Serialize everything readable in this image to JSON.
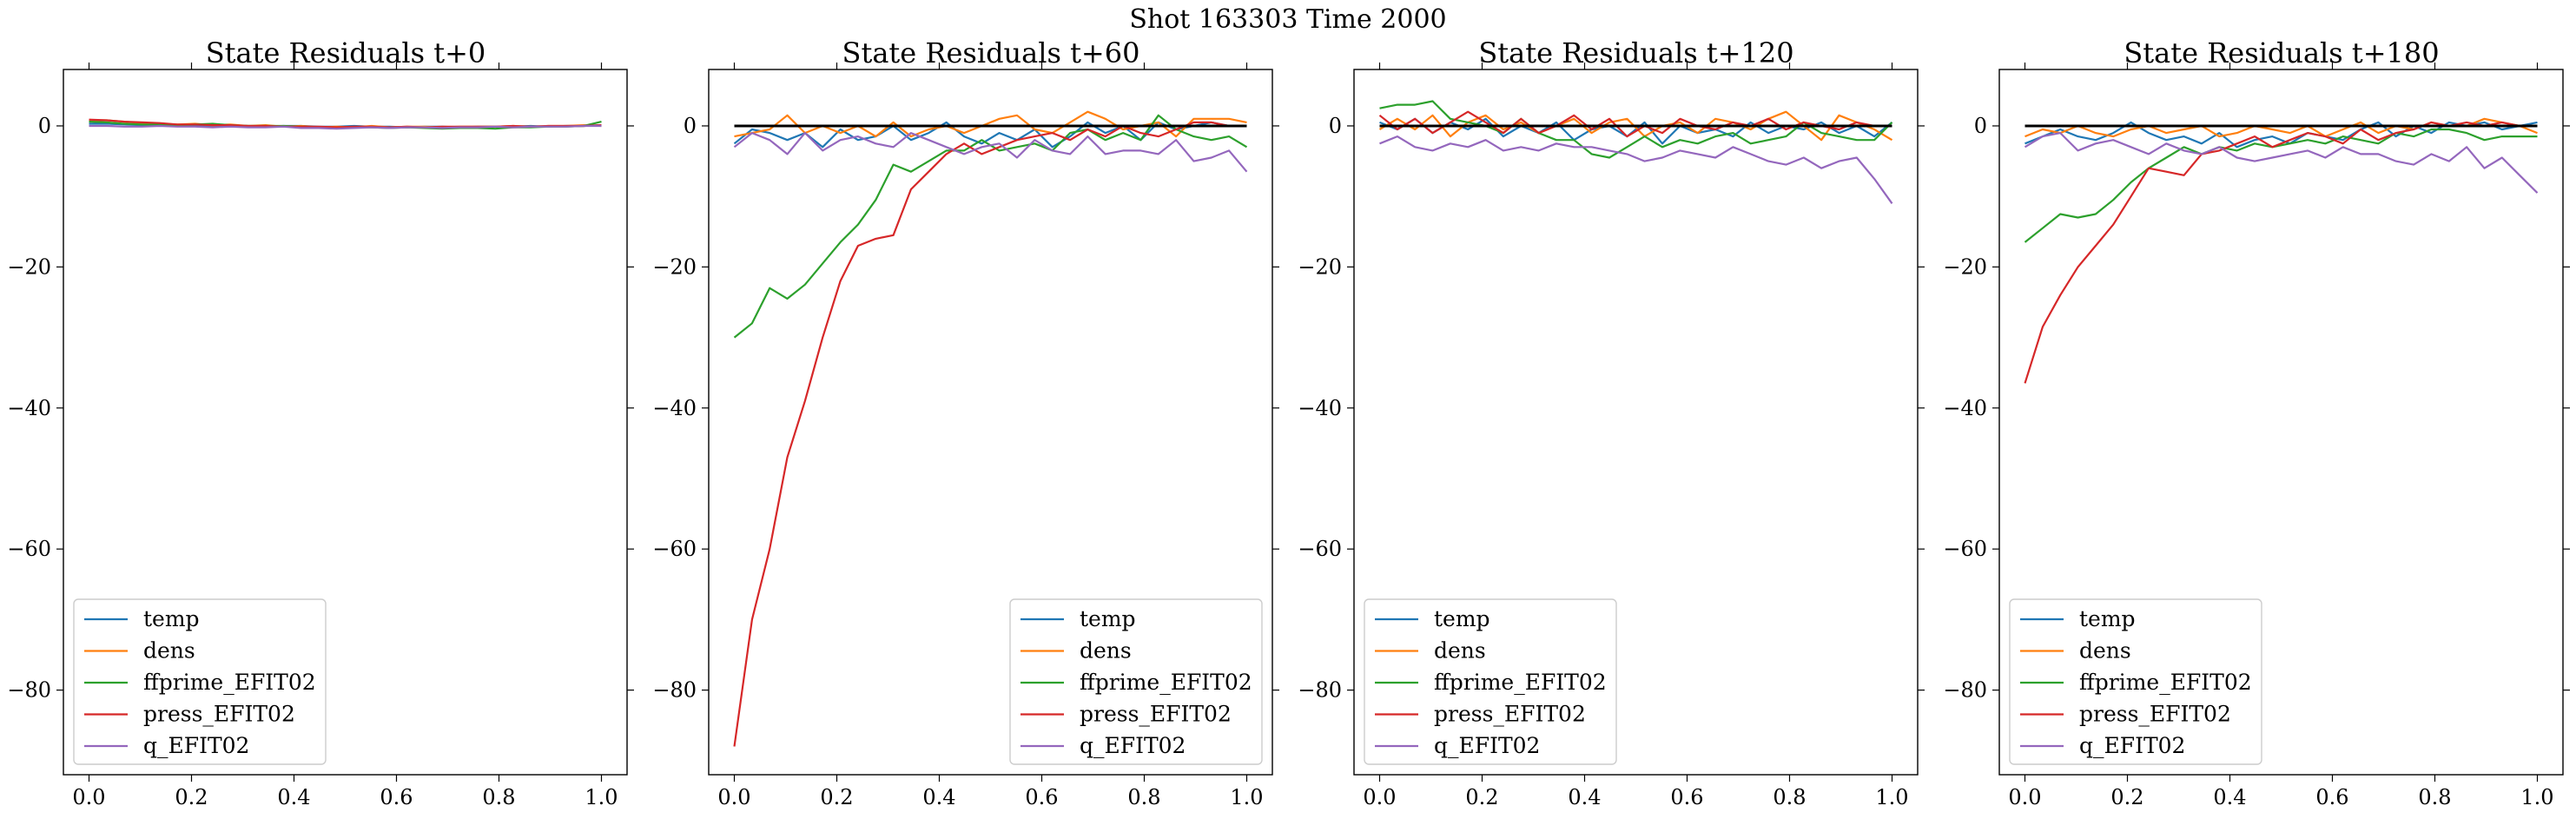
{
  "figure_title": "Shot 163303   Time 2000",
  "series_colors": {
    "temp": "#1f77b4",
    "dens": "#ff7f0e",
    "ffprime_EFIT02": "#2ca02c",
    "press_EFIT02": "#d62728",
    "q_EFIT02": "#9467bd"
  },
  "chart_data": [
    {
      "type": "line",
      "title": "State Residuals t+0",
      "xlim": [
        -0.05,
        1.05
      ],
      "ylim": [
        -92,
        8
      ],
      "xticks": [
        "0.0",
        "0.2",
        "0.4",
        "0.6",
        "0.8",
        "1.0"
      ],
      "yticks": [
        "0",
        "−20",
        "−40",
        "−60",
        "−80"
      ],
      "legend": "lower-left",
      "x": [
        0.0,
        0.0345,
        0.069,
        0.1034,
        0.1379,
        0.1724,
        0.2069,
        0.2414,
        0.2759,
        0.3103,
        0.3448,
        0.3793,
        0.4138,
        0.4483,
        0.4828,
        0.5172,
        0.5517,
        0.5862,
        0.6207,
        0.6552,
        0.6897,
        0.7241,
        0.7586,
        0.7931,
        0.8276,
        0.8621,
        0.8966,
        0.931,
        0.9655,
        1.0
      ],
      "series": [
        {
          "name": "temp",
          "values": [
            0.3,
            0.3,
            0.2,
            0.1,
            0.2,
            0.1,
            0.1,
            0.0,
            0.1,
            0.0,
            -0.1,
            0.0,
            0.0,
            -0.1,
            -0.1,
            0.0,
            -0.1,
            -0.1,
            -0.2,
            -0.1,
            -0.1,
            -0.2,
            -0.1,
            -0.1,
            -0.1,
            0.0,
            -0.1,
            0.0,
            0.0,
            0.1
          ]
        },
        {
          "name": "dens",
          "values": [
            0.8,
            0.8,
            0.6,
            0.4,
            0.3,
            0.2,
            0.3,
            0.1,
            0.2,
            0.0,
            0.1,
            -0.1,
            0.0,
            -0.2,
            -0.1,
            -0.2,
            0.0,
            -0.2,
            -0.1,
            -0.1,
            -0.2,
            -0.1,
            -0.1,
            -0.1,
            0.0,
            -0.1,
            0.0,
            0.0,
            0.1,
            0.0
          ]
        },
        {
          "name": "ffprime_EFIT02",
          "values": [
            0.6,
            0.5,
            0.3,
            0.2,
            0.2,
            0.1,
            0.2,
            0.3,
            0.1,
            0.0,
            0.0,
            0.0,
            -0.1,
            -0.2,
            -0.3,
            -0.2,
            -0.2,
            -0.3,
            -0.2,
            -0.3,
            -0.4,
            -0.3,
            -0.3,
            -0.4,
            -0.2,
            -0.2,
            -0.1,
            -0.1,
            0.0,
            0.6
          ]
        },
        {
          "name": "press_EFIT02",
          "values": [
            0.9,
            0.8,
            0.6,
            0.5,
            0.4,
            0.2,
            0.2,
            0.1,
            0.1,
            0.0,
            0.0,
            -0.1,
            -0.1,
            -0.1,
            -0.2,
            -0.1,
            -0.1,
            -0.2,
            -0.1,
            -0.2,
            -0.1,
            -0.1,
            -0.1,
            -0.1,
            0.0,
            -0.1,
            0.0,
            0.0,
            0.0,
            0.1
          ]
        },
        {
          "name": "q_EFIT02",
          "values": [
            0.0,
            0.0,
            -0.1,
            -0.1,
            0.0,
            -0.1,
            -0.1,
            -0.2,
            -0.1,
            -0.2,
            -0.2,
            -0.1,
            -0.3,
            -0.3,
            -0.4,
            -0.3,
            -0.2,
            -0.3,
            -0.2,
            -0.2,
            -0.3,
            -0.2,
            -0.2,
            -0.1,
            -0.2,
            -0.1,
            -0.1,
            -0.1,
            0.0,
            0.0
          ]
        }
      ]
    },
    {
      "type": "line",
      "title": "State Residuals t+60",
      "xlim": [
        -0.05,
        1.05
      ],
      "ylim": [
        -92,
        8
      ],
      "xticks": [
        "0.0",
        "0.2",
        "0.4",
        "0.6",
        "0.8",
        "1.0"
      ],
      "yticks": [
        "0",
        "−20",
        "−40",
        "−60",
        "−80"
      ],
      "legend": "lower-right",
      "x": [
        0.0,
        0.0345,
        0.069,
        0.1034,
        0.1379,
        0.1724,
        0.2069,
        0.2414,
        0.2759,
        0.3103,
        0.3448,
        0.3793,
        0.4138,
        0.4483,
        0.4828,
        0.5172,
        0.5517,
        0.5862,
        0.6207,
        0.6552,
        0.6897,
        0.7241,
        0.7586,
        0.7931,
        0.8276,
        0.8621,
        0.8966,
        0.931,
        0.9655,
        1.0
      ],
      "series": [
        {
          "name": "temp",
          "values": [
            -2.5,
            -0.5,
            -1.0,
            -2.0,
            -1.0,
            -3.0,
            -0.5,
            -2.0,
            -1.5,
            0.0,
            -2.0,
            -1.0,
            0.5,
            -1.5,
            -2.5,
            -1.0,
            -2.0,
            -0.5,
            -3.0,
            -1.5,
            0.5,
            -1.0,
            0.0,
            -2.0,
            0.5,
            -0.5,
            0.0,
            0.5,
            0.0,
            0.0
          ]
        },
        {
          "name": "dens",
          "values": [
            -1.5,
            -1.0,
            -0.5,
            1.5,
            -1.0,
            0.0,
            -1.0,
            0.0,
            -1.5,
            0.5,
            -1.5,
            -0.5,
            0.0,
            -1.0,
            0.0,
            1.0,
            1.5,
            -0.5,
            -1.0,
            0.5,
            2.0,
            1.0,
            -0.5,
            0.0,
            0.5,
            -1.5,
            1.0,
            1.0,
            1.0,
            0.5
          ]
        },
        {
          "name": "ffprime_EFIT02",
          "values": [
            -30.0,
            -28.0,
            -23.0,
            -24.5,
            -22.5,
            -19.5,
            -16.5,
            -14.0,
            -10.5,
            -5.5,
            -6.5,
            -5.0,
            -3.5,
            -3.5,
            -2.0,
            -3.5,
            -3.0,
            -2.5,
            -3.5,
            -1.0,
            -0.5,
            -2.0,
            -1.0,
            -2.0,
            1.5,
            -0.5,
            -1.5,
            -2.0,
            -1.5,
            -3.0
          ]
        },
        {
          "name": "press_EFIT02",
          "values": [
            -88.0,
            -70.0,
            -60.0,
            -47.0,
            -39.0,
            -30.0,
            -22.0,
            -17.0,
            -16.0,
            -15.5,
            -9.0,
            -6.5,
            -4.0,
            -2.5,
            -4.0,
            -3.0,
            -2.0,
            -1.5,
            -1.0,
            -2.0,
            -0.5,
            -1.5,
            0.0,
            -1.0,
            -1.5,
            -0.5,
            0.5,
            0.5,
            0.0,
            0.0
          ]
        },
        {
          "name": "q_EFIT02",
          "values": [
            -3.0,
            -1.0,
            -2.0,
            -4.0,
            -1.0,
            -3.5,
            -2.0,
            -1.5,
            -2.5,
            -3.0,
            -1.0,
            -2.0,
            -3.0,
            -4.0,
            -3.0,
            -2.5,
            -4.5,
            -2.0,
            -3.5,
            -4.0,
            -1.5,
            -4.0,
            -3.5,
            -3.5,
            -4.0,
            -2.0,
            -5.0,
            -4.5,
            -3.5,
            -6.5
          ]
        }
      ]
    },
    {
      "type": "line",
      "title": "State Residuals t+120",
      "xlim": [
        -0.05,
        1.05
      ],
      "ylim": [
        -92,
        8
      ],
      "xticks": [
        "0.0",
        "0.2",
        "0.4",
        "0.6",
        "0.8",
        "1.0"
      ],
      "yticks": [
        "0",
        "−20",
        "−40",
        "−60",
        "−80"
      ],
      "legend": "lower-left",
      "x": [
        0.0,
        0.0345,
        0.069,
        0.1034,
        0.1379,
        0.1724,
        0.2069,
        0.2414,
        0.2759,
        0.3103,
        0.3448,
        0.3793,
        0.4138,
        0.4483,
        0.4828,
        0.5172,
        0.5517,
        0.5862,
        0.6207,
        0.6552,
        0.6897,
        0.7241,
        0.7586,
        0.7931,
        0.8276,
        0.8621,
        0.8966,
        0.931,
        0.9655,
        1.0
      ],
      "series": [
        {
          "name": "temp",
          "values": [
            0.5,
            -0.5,
            1.0,
            -1.0,
            0.5,
            -0.5,
            1.0,
            -1.5,
            0.0,
            -1.0,
            0.5,
            -2.0,
            -0.5,
            0.0,
            -1.5,
            0.5,
            -2.5,
            0.0,
            -1.0,
            -0.5,
            -1.5,
            0.5,
            -1.0,
            0.0,
            -0.5,
            0.5,
            -1.0,
            0.0,
            -1.5,
            0.5
          ]
        },
        {
          "name": "dens",
          "values": [
            -0.5,
            1.0,
            -0.5,
            1.5,
            -1.5,
            0.5,
            1.5,
            -0.5,
            0.5,
            -1.0,
            0.0,
            1.0,
            -1.0,
            0.5,
            1.0,
            -1.5,
            0.0,
            0.5,
            -1.0,
            1.0,
            0.5,
            -0.5,
            1.0,
            2.0,
            0.0,
            -2.0,
            1.5,
            0.5,
            -0.5,
            -2.0
          ]
        },
        {
          "name": "ffprime_EFIT02",
          "values": [
            2.5,
            3.0,
            3.0,
            3.5,
            1.0,
            0.5,
            0.0,
            -1.0,
            1.0,
            -1.0,
            -2.0,
            -2.0,
            -4.0,
            -4.5,
            -3.0,
            -1.5,
            -3.0,
            -2.0,
            -2.5,
            -1.5,
            -1.0,
            -2.5,
            -2.0,
            -1.5,
            0.5,
            -1.0,
            -1.5,
            -2.0,
            -2.0,
            0.5
          ]
        },
        {
          "name": "press_EFIT02",
          "values": [
            1.5,
            -0.5,
            1.0,
            -1.0,
            0.5,
            2.0,
            0.5,
            -1.0,
            1.0,
            -1.0,
            0.0,
            1.5,
            -0.5,
            1.0,
            -1.5,
            0.0,
            -1.0,
            1.0,
            0.0,
            -0.5,
            0.5,
            0.0,
            1.0,
            -0.5,
            0.5,
            0.0,
            -0.5,
            0.5,
            0.0,
            0.0
          ]
        },
        {
          "name": "q_EFIT02",
          "values": [
            -2.5,
            -1.5,
            -3.0,
            -3.5,
            -2.5,
            -3.0,
            -2.0,
            -3.5,
            -3.0,
            -3.5,
            -2.5,
            -3.0,
            -3.0,
            -3.5,
            -4.0,
            -5.0,
            -4.5,
            -3.5,
            -4.0,
            -4.5,
            -3.0,
            -4.0,
            -5.0,
            -5.5,
            -4.5,
            -6.0,
            -5.0,
            -4.5,
            -7.5,
            -11.0
          ]
        }
      ]
    },
    {
      "type": "line",
      "title": "State Residuals t+180",
      "xlim": [
        -0.05,
        1.05
      ],
      "ylim": [
        -92,
        8
      ],
      "xticks": [
        "0.0",
        "0.2",
        "0.4",
        "0.6",
        "0.8",
        "1.0"
      ],
      "yticks": [
        "0",
        "−20",
        "−40",
        "−60",
        "−80"
      ],
      "legend": "lower-left",
      "x": [
        0.0,
        0.0345,
        0.069,
        0.1034,
        0.1379,
        0.1724,
        0.2069,
        0.2414,
        0.2759,
        0.3103,
        0.3448,
        0.3793,
        0.4138,
        0.4483,
        0.4828,
        0.5172,
        0.5517,
        0.5862,
        0.6207,
        0.6552,
        0.6897,
        0.7241,
        0.7586,
        0.7931,
        0.8276,
        0.8621,
        0.8966,
        0.931,
        0.9655,
        1.0
      ],
      "series": [
        {
          "name": "temp",
          "values": [
            -2.5,
            -1.5,
            -0.5,
            -1.5,
            -2.0,
            -1.0,
            0.5,
            -1.0,
            -2.0,
            -1.5,
            -2.5,
            -1.0,
            -3.0,
            -2.0,
            -1.5,
            -2.5,
            -1.0,
            -1.5,
            -2.0,
            -0.5,
            0.5,
            -1.5,
            0.0,
            -1.0,
            0.5,
            0.0,
            0.5,
            -0.5,
            0.0,
            0.5
          ]
        },
        {
          "name": "dens",
          "values": [
            -1.5,
            -0.5,
            -1.0,
            0.0,
            -1.0,
            -1.5,
            -0.5,
            0.0,
            -1.0,
            -0.5,
            0.0,
            -1.5,
            -1.0,
            0.0,
            -0.5,
            -1.0,
            0.0,
            -1.5,
            -0.5,
            0.5,
            -1.0,
            0.0,
            -0.5,
            0.5,
            0.0,
            0.0,
            1.0,
            0.5,
            0.0,
            -1.0
          ]
        },
        {
          "name": "ffprime_EFIT02",
          "values": [
            -16.5,
            -14.5,
            -12.5,
            -13.0,
            -12.5,
            -10.5,
            -8.0,
            -6.0,
            -4.5,
            -3.0,
            -4.0,
            -3.0,
            -3.5,
            -2.5,
            -3.0,
            -2.5,
            -2.0,
            -2.5,
            -1.5,
            -2.0,
            -2.5,
            -1.0,
            -1.5,
            -0.5,
            -0.5,
            -1.0,
            -2.0,
            -1.5,
            -1.5,
            -1.5
          ]
        },
        {
          "name": "press_EFIT02",
          "values": [
            -36.5,
            -28.5,
            -24.0,
            -20.0,
            -17.0,
            -14.0,
            -10.0,
            -6.0,
            -6.5,
            -7.0,
            -4.0,
            -3.5,
            -2.5,
            -1.5,
            -3.0,
            -2.0,
            -1.0,
            -1.5,
            -2.5,
            -0.5,
            -2.0,
            -1.0,
            -0.5,
            0.5,
            0.0,
            0.5,
            0.0,
            0.5,
            0.0,
            0.0
          ]
        },
        {
          "name": "q_EFIT02",
          "values": [
            -3.0,
            -1.5,
            -1.0,
            -3.5,
            -2.5,
            -2.0,
            -3.0,
            -4.0,
            -2.5,
            -3.5,
            -4.0,
            -3.0,
            -4.5,
            -5.0,
            -4.5,
            -4.0,
            -3.5,
            -4.5,
            -3.0,
            -4.0,
            -4.0,
            -5.0,
            -5.5,
            -4.0,
            -5.0,
            -3.0,
            -6.0,
            -4.5,
            -7.0,
            -9.5
          ]
        }
      ]
    }
  ]
}
